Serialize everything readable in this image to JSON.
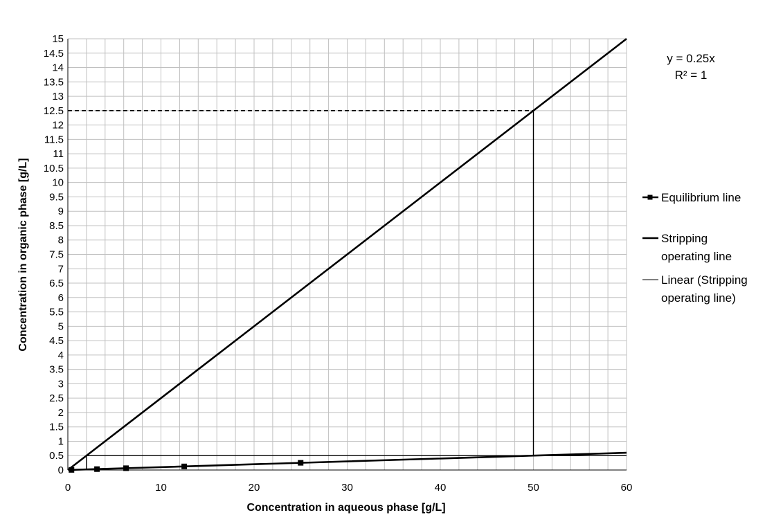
{
  "chart_data": {
    "type": "line",
    "xlabel": "Concentration  in aqueous phase  [g/L]",
    "ylabel": "Concentration  in  organic phase  [g/L]",
    "xlim": [
      0,
      60
    ],
    "ylim": [
      0,
      15
    ],
    "x_ticks": [
      0,
      10,
      20,
      30,
      40,
      50,
      60
    ],
    "y_ticks": [
      0,
      0.5,
      1,
      1.5,
      2,
      2.5,
      3,
      3.5,
      4,
      4.5,
      5,
      5.5,
      6,
      6.5,
      7,
      7.5,
      8,
      8.5,
      9,
      9.5,
      10,
      10.5,
      11,
      11.5,
      12,
      12.5,
      13,
      13.5,
      14,
      14.5,
      15
    ],
    "grid": true,
    "legend_position": "right",
    "series": [
      {
        "name": "Equilibrium line",
        "style": "line-square-markers",
        "color": "#000000",
        "x": [
          0.39,
          3.13,
          6.25,
          12.5,
          25,
          50,
          60
        ],
        "y": [
          0.004,
          0.031,
          0.063,
          0.125,
          0.25,
          0.5,
          0.6
        ],
        "markers_x": [
          0.39,
          3.13,
          6.25,
          12.5,
          25
        ]
      },
      {
        "name": "Stripping operating line",
        "style": "thick-line",
        "color": "#000000",
        "x": [
          0,
          60
        ],
        "y": [
          0,
          15
        ]
      },
      {
        "name": "Linear (Stripping operating line)",
        "style": "thin-line",
        "color": "#000000",
        "x": [
          0,
          60
        ],
        "y": [
          0,
          15
        ]
      }
    ],
    "construction_lines": {
      "horizontal_dashed": {
        "x": [
          0,
          50
        ],
        "y": [
          12.5,
          12.5
        ]
      },
      "vertical_stage": {
        "x": [
          50,
          50
        ],
        "y": [
          0.5,
          12.5
        ]
      },
      "horizontal_stage": {
        "x": [
          2,
          60
        ],
        "y": [
          0.5,
          0.5
        ]
      },
      "small_vertical_stage": {
        "x": [
          2,
          2
        ],
        "y": [
          0.02,
          0.5
        ]
      }
    },
    "trendline_equation": "y = 0.25x",
    "trendline_r2": "R² = 1"
  }
}
